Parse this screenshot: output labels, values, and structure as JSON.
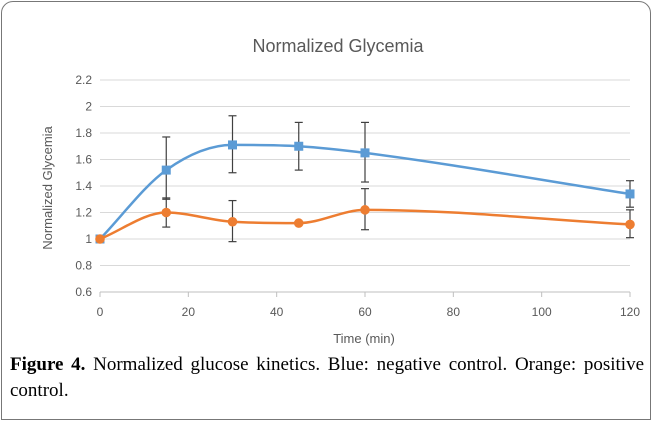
{
  "caption": {
    "label": "Figure 4.",
    "text": "Normalized glucose kinetics. Blue: negative control. Orange: positive control."
  },
  "chart_data": {
    "type": "line",
    "title": "Normalized Glycemia",
    "xlabel": "Time (min)",
    "ylabel": "Normalized Glycemia",
    "xlim": [
      0,
      120
    ],
    "ylim": [
      0.6,
      2.2
    ],
    "x_ticks": [
      0,
      20,
      40,
      60,
      80,
      100,
      120
    ],
    "y_ticks": [
      0.6,
      0.8,
      1,
      1.2,
      1.4,
      1.6,
      1.8,
      2,
      2.2
    ],
    "y_tick_labels": [
      "0.6",
      "0.8",
      "1",
      "1.2",
      "1.4",
      "1.6",
      "1.8",
      "2",
      "2.2"
    ],
    "grid": "horizontal",
    "smooth": true,
    "x": [
      0,
      15,
      30,
      45,
      60,
      120
    ],
    "series": [
      {
        "color": "#5b9bd5",
        "marker": "square",
        "values": [
          1.0,
          1.52,
          1.71,
          1.7,
          1.65,
          1.34
        ],
        "error_low": [
          null,
          1.3,
          1.5,
          1.52,
          1.43,
          1.24
        ],
        "error_high": [
          null,
          1.77,
          1.93,
          1.88,
          1.88,
          1.44
        ]
      },
      {
        "color": "#ed7d31",
        "marker": "circle",
        "values": [
          1.0,
          1.2,
          1.13,
          1.12,
          1.22,
          1.11
        ],
        "error_low": [
          null,
          1.09,
          0.98,
          null,
          1.07,
          1.01
        ],
        "error_high": [
          null,
          1.31,
          1.29,
          null,
          1.38,
          1.22
        ]
      }
    ],
    "colors": {
      "grid": "#d9d9d9",
      "axis": "#bfbfbf",
      "text": "#595959",
      "errorbar": "#404040"
    }
  }
}
